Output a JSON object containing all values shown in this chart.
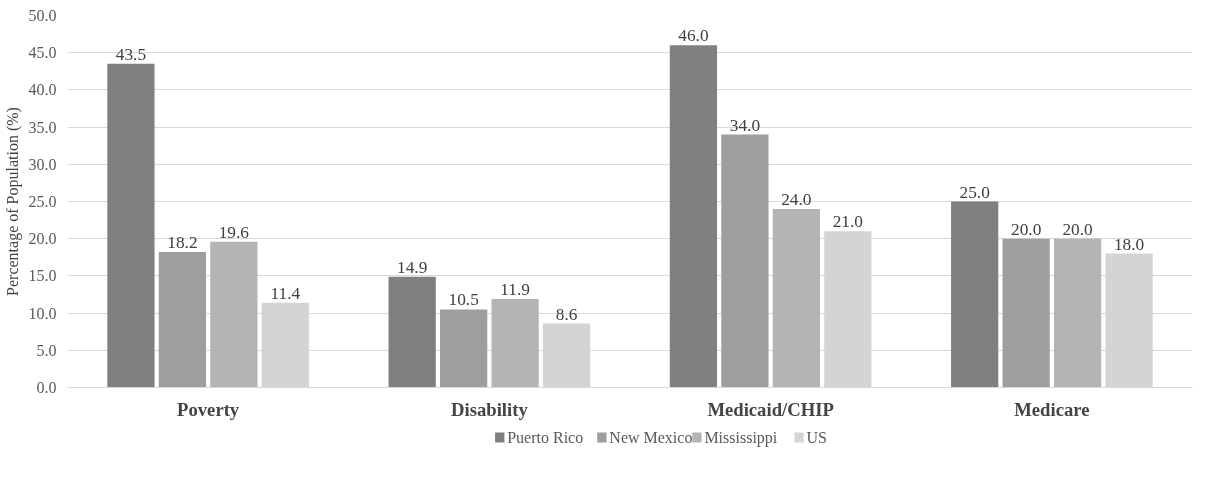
{
  "chart_data": {
    "type": "bar",
    "ylabel": "Percentage of Population (%)",
    "categories": [
      "Poverty",
      "Disability",
      "Medicaid/CHIP",
      "Medicare"
    ],
    "series": [
      {
        "name": "Puerto Rico",
        "color": "#808080",
        "values": [
          43.5,
          14.9,
          46.0,
          25.0
        ],
        "value_labels": [
          "43.5",
          "14.9",
          "46.0",
          "25.0"
        ]
      },
      {
        "name": "New Mexico",
        "color": "#9e9e9e",
        "values": [
          18.2,
          10.5,
          34.0,
          20.0
        ],
        "value_labels": [
          "18.2",
          "10.5",
          "34.0",
          "20.0"
        ]
      },
      {
        "name": "Mississippi",
        "color": "#b4b4b4",
        "values": [
          19.6,
          11.9,
          24.0,
          20.0
        ],
        "value_labels": [
          "19.6",
          "11.9",
          "24.0",
          "20.0"
        ]
      },
      {
        "name": "US",
        "color": "#d4d4d4",
        "values": [
          11.4,
          8.6,
          21.0,
          18.0
        ],
        "value_labels": [
          "11.4",
          "8.6",
          "21.0",
          "18.0"
        ]
      }
    ],
    "ylim": [
      0,
      50
    ],
    "yticks": [
      {
        "value": 0,
        "label": "0.0"
      },
      {
        "value": 5,
        "label": "5.0"
      },
      {
        "value": 10,
        "label": "10.0"
      },
      {
        "value": 15,
        "label": "15.0"
      },
      {
        "value": 20,
        "label": "20.0"
      },
      {
        "value": 25,
        "label": "25.0"
      },
      {
        "value": 30,
        "label": "30.0"
      },
      {
        "value": 35,
        "label": "35.0"
      },
      {
        "value": 40,
        "label": "40.0"
      },
      {
        "value": 45,
        "label": "45.0"
      },
      {
        "value": 50,
        "label": "50.0"
      }
    ],
    "grid": "y",
    "legend": "bottom"
  }
}
